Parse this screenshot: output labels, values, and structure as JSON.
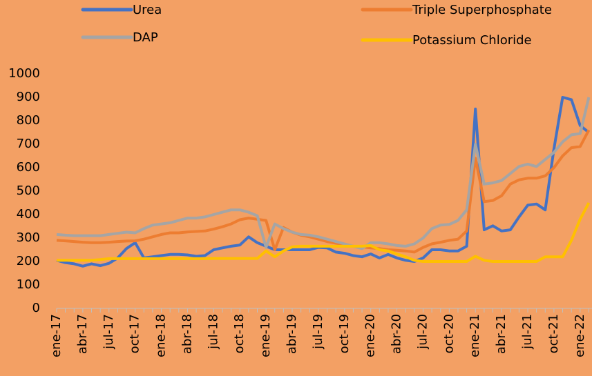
{
  "chart_data": {
    "type": "line",
    "categories": [
      "ene-17",
      null,
      null,
      "abr-17",
      null,
      null,
      "jul-17",
      null,
      null,
      "oct-17",
      null,
      null,
      "ene-18",
      null,
      null,
      "abr-18",
      null,
      null,
      "jul-18",
      null,
      null,
      "oct-18",
      null,
      null,
      "ene-19",
      null,
      null,
      "abr-19",
      null,
      null,
      "jul-19",
      null,
      null,
      "oct-19",
      null,
      null,
      "ene-20",
      null,
      null,
      "abr-20",
      null,
      null,
      "jul-20",
      null,
      null,
      "oct-20",
      null,
      null,
      "ene-21",
      null,
      null,
      "abr-21",
      null,
      null,
      "jul-21",
      null,
      null,
      "oct-21",
      null,
      null,
      "ene-22",
      null
    ],
    "series": [
      {
        "name": "Urea",
        "color": "#4472c4",
        "values": [
          205,
          195,
          190,
          180,
          190,
          182,
          192,
          215,
          255,
          280,
          215,
          220,
          225,
          230,
          230,
          228,
          222,
          225,
          250,
          258,
          265,
          270,
          305,
          280,
          265,
          250,
          250,
          250,
          250,
          250,
          260,
          258,
          240,
          235,
          225,
          220,
          232,
          215,
          230,
          215,
          205,
          200,
          215,
          250,
          250,
          245,
          245,
          265,
          850,
          335,
          352,
          330,
          335,
          390,
          440,
          445,
          420,
          680,
          900,
          890,
          780,
          750
        ]
      },
      {
        "name": "Triple Superphosphate",
        "color": "#ed7d31",
        "values": [
          290,
          288,
          285,
          282,
          280,
          280,
          282,
          285,
          287,
          288,
          295,
          305,
          315,
          322,
          322,
          326,
          328,
          330,
          338,
          348,
          360,
          378,
          385,
          380,
          375,
          250,
          345,
          325,
          312,
          305,
          295,
          285,
          278,
          272,
          265,
          262,
          258,
          255,
          250,
          248,
          245,
          240,
          260,
          275,
          282,
          290,
          295,
          330,
          640,
          455,
          460,
          480,
          530,
          548,
          555,
          555,
          565,
          600,
          650,
          685,
          690,
          760
        ]
      },
      {
        "name": "DAP",
        "color": "#a5a5a5",
        "values": [
          315,
          312,
          310,
          310,
          310,
          310,
          315,
          320,
          325,
          322,
          340,
          355,
          360,
          365,
          375,
          385,
          385,
          390,
          400,
          410,
          420,
          420,
          410,
          395,
          260,
          360,
          340,
          325,
          315,
          312,
          305,
          295,
          285,
          275,
          265,
          255,
          280,
          280,
          275,
          268,
          265,
          275,
          300,
          340,
          355,
          358,
          375,
          420,
          700,
          530,
          535,
          545,
          575,
          605,
          615,
          605,
          635,
          665,
          710,
          740,
          745,
          900
        ]
      },
      {
        "name": "Potassium Chloride",
        "color": "#ffc000",
        "values": [
          205,
          205,
          205,
          205,
          205,
          208,
          212,
          212,
          212,
          212,
          212,
          212,
          212,
          212,
          212,
          212,
          212,
          212,
          213,
          213,
          213,
          213,
          213,
          213,
          245,
          220,
          245,
          262,
          265,
          265,
          265,
          265,
          265,
          265,
          265,
          265,
          268,
          250,
          245,
          232,
          220,
          205,
          200,
          200,
          200,
          200,
          200,
          200,
          222,
          205,
          200,
          200,
          200,
          200,
          200,
          200,
          220,
          220,
          220,
          290,
          380,
          450
        ]
      }
    ],
    "ylim": [
      0,
      1000
    ],
    "yticks": [
      0,
      100,
      200,
      300,
      400,
      500,
      600,
      700,
      800,
      900,
      1000
    ],
    "legend": "top",
    "background": "#f3a064"
  }
}
